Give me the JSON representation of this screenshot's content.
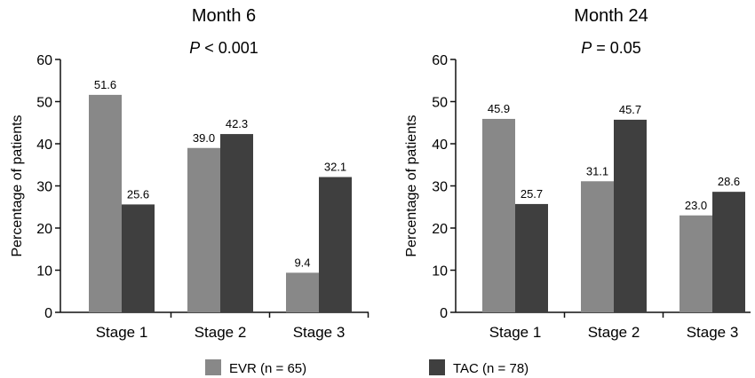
{
  "colors": {
    "evr": "#888888",
    "tac": "#3f3f3f",
    "axis": "#111111"
  },
  "legend": [
    {
      "key": "evr",
      "label": "EVR (n = 65)"
    },
    {
      "key": "tac",
      "label": "TAC (n = 78)"
    }
  ],
  "chart_data": [
    {
      "type": "bar",
      "title": "Month 6",
      "subtitle_p": "P",
      "subtitle_rest": " < 0.001",
      "ylabel": "Percentage of patients",
      "xlabel": "",
      "ylim": [
        0,
        60
      ],
      "yticks": [
        0,
        10,
        20,
        30,
        40,
        50,
        60
      ],
      "categories": [
        "Stage 1",
        "Stage 2",
        "Stage 3"
      ],
      "series": [
        {
          "name": "EVR (n = 65)",
          "values": [
            51.6,
            39.0,
            9.4
          ],
          "labels": [
            "51.6",
            "39.0",
            "9.4"
          ]
        },
        {
          "name": "TAC (n = 78)",
          "values": [
            25.6,
            42.3,
            32.1
          ],
          "labels": [
            "25.6",
            "42.3",
            "32.1"
          ]
        }
      ],
      "grid": false,
      "legend_position": "bottom"
    },
    {
      "type": "bar",
      "title": "Month 24",
      "subtitle_p": "P",
      "subtitle_rest": " = 0.05",
      "ylabel": "Percentage of patients",
      "xlabel": "",
      "ylim": [
        0,
        60
      ],
      "yticks": [
        0,
        10,
        20,
        30,
        40,
        50,
        60
      ],
      "categories": [
        "Stage 1",
        "Stage 2",
        "Stage 3"
      ],
      "series": [
        {
          "name": "EVR (n = 65)",
          "values": [
            45.9,
            31.1,
            23.0
          ],
          "labels": [
            "45.9",
            "31.1",
            "23.0"
          ]
        },
        {
          "name": "TAC (n = 78)",
          "values": [
            25.7,
            45.7,
            28.6
          ],
          "labels": [
            "25.7",
            "45.7",
            "28.6"
          ]
        }
      ],
      "grid": false,
      "legend_position": "bottom"
    }
  ]
}
